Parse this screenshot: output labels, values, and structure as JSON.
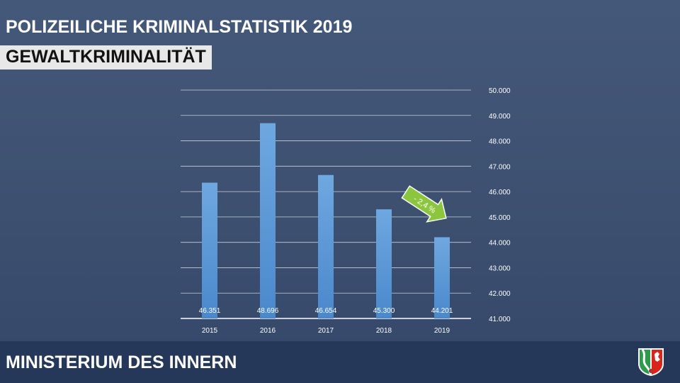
{
  "header": {
    "title": "POLIZEILICHE KRIMINALSTATISTIK 2019",
    "subtitle": "GEWALTKRIMINALITÄT"
  },
  "footer": {
    "ministry": "MINISTERIUM DES INNERN"
  },
  "chart_data": {
    "type": "bar",
    "categories": [
      "2015",
      "2016",
      "2017",
      "2018",
      "2019"
    ],
    "values": [
      46351,
      48696,
      46654,
      45300,
      44201
    ],
    "value_labels": [
      "46.351",
      "48.696",
      "46.654",
      "45.300",
      "44.201"
    ],
    "ylim": [
      41000,
      50000
    ],
    "yticks": [
      41000,
      42000,
      43000,
      44000,
      45000,
      46000,
      47000,
      48000,
      49000,
      50000
    ],
    "ytick_labels": [
      "41.000",
      "42.000",
      "43.000",
      "44.000",
      "45.000",
      "46.000",
      "47.000",
      "48.000",
      "49.000",
      "50.000"
    ],
    "axis_position": "right",
    "grid": true,
    "annotation": "- 2,4 %",
    "bar_color": "#5b9bd5",
    "annotation_color": "#8cc63f"
  }
}
